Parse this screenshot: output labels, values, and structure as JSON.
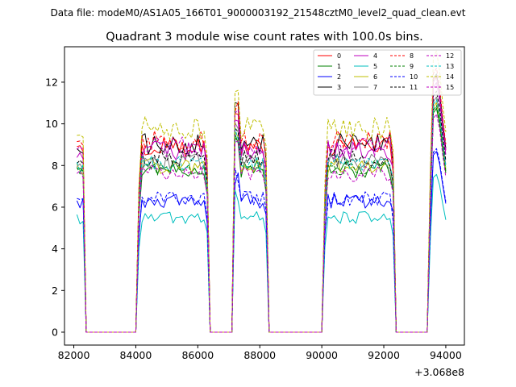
{
  "chart_data": {
    "type": "line",
    "suptitle": "Data file: modeM0/AS1A05_166T01_9000003192_21548cztM0_level2_quad_clean.evt",
    "title": "Quadrant 3 module wise count rates with 100.0s bins.",
    "xlabel": "",
    "ylabel": "",
    "offset_text": "+3.068e8",
    "xlim": [
      81700,
      94600
    ],
    "ylim": [
      -0.62,
      13.7
    ],
    "xticks": [
      82000,
      84000,
      86000,
      88000,
      90000,
      92000,
      94000
    ],
    "xtick_labels": [
      "82000",
      "84000",
      "86000",
      "88000",
      "90000",
      "92000",
      "94000"
    ],
    "yticks": [
      0,
      2,
      4,
      6,
      8,
      10,
      12
    ],
    "ytick_labels": [
      "0",
      "2",
      "4",
      "6",
      "8",
      "10",
      "12"
    ],
    "grid": false,
    "legend_position": "top-right",
    "bin_width": 100,
    "x_start": 82100,
    "segments": [
      {
        "from": 82100,
        "to": 82300
      },
      {
        "from": 84100,
        "to": 86300
      },
      {
        "from": 87200,
        "to": 88200
      },
      {
        "from": 90100,
        "to": 92300
      },
      {
        "from": 93500,
        "to": 94000
      }
    ],
    "series": [
      {
        "name": "0",
        "color": "#ff0000",
        "dash": "solid",
        "level": 8.9,
        "scale": 1.0,
        "noise": 0.3
      },
      {
        "name": "1",
        "color": "#008000",
        "dash": "solid",
        "level": 7.8,
        "scale": 0.91,
        "noise": 0.25
      },
      {
        "name": "2",
        "color": "#0000ff",
        "dash": "solid",
        "level": 6.3,
        "scale": 0.74,
        "noise": 0.22
      },
      {
        "name": "3",
        "color": "#000000",
        "dash": "solid",
        "level": 9.0,
        "scale": 1.02,
        "noise": 0.35
      },
      {
        "name": "4",
        "color": "#bf00bf",
        "dash": "solid",
        "level": 8.7,
        "scale": 0.98,
        "noise": 0.3
      },
      {
        "name": "5",
        "color": "#00bfbf",
        "dash": "solid",
        "level": 5.5,
        "scale": 0.72,
        "noise": 0.18
      },
      {
        "name": "6",
        "color": "#bfbf00",
        "dash": "solid",
        "level": 8.0,
        "scale": 0.95,
        "noise": 0.25
      },
      {
        "name": "7",
        "color": "#808080",
        "dash": "solid",
        "level": 8.2,
        "scale": 0.94,
        "noise": 0.25
      },
      {
        "name": "8",
        "color": "#ff0000",
        "dash": "dashed",
        "level": 9.2,
        "scale": 1.03,
        "noise": 0.3
      },
      {
        "name": "9",
        "color": "#008000",
        "dash": "dashed",
        "level": 7.9,
        "scale": 0.92,
        "noise": 0.25
      },
      {
        "name": "10",
        "color": "#0000ff",
        "dash": "dashed",
        "level": 6.4,
        "scale": 0.75,
        "noise": 0.22
      },
      {
        "name": "11",
        "color": "#000000",
        "dash": "dashed",
        "level": 8.4,
        "scale": 0.97,
        "noise": 0.28
      },
      {
        "name": "12",
        "color": "#bf00bf",
        "dash": "dashed",
        "level": 8.9,
        "scale": 1.0,
        "noise": 0.3
      },
      {
        "name": "13",
        "color": "#00bfbf",
        "dash": "dashed",
        "level": 8.1,
        "scale": 0.93,
        "noise": 0.25
      },
      {
        "name": "14",
        "color": "#bfbf00",
        "dash": "dashed",
        "level": 9.8,
        "scale": 1.07,
        "noise": 0.35
      },
      {
        "name": "15",
        "color": "#bf00bf",
        "dash": "dashed",
        "level": 7.6,
        "scale": 0.9,
        "noise": 0.25
      }
    ]
  }
}
